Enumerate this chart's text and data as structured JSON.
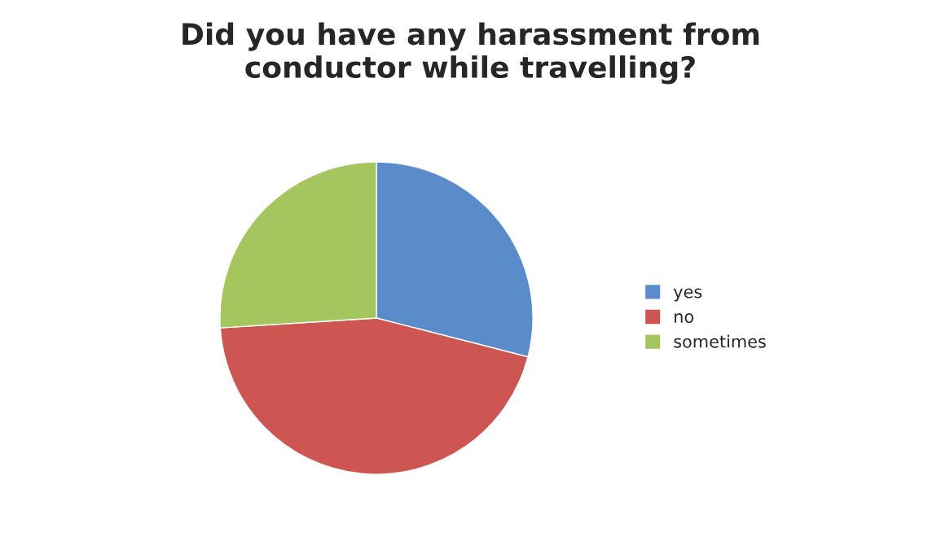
{
  "chart_data": {
    "type": "pie",
    "title": "Did you have any harassment from\nconductor while travelling?",
    "categories": [
      "yes",
      "no",
      "sometimes"
    ],
    "values": [
      29,
      45,
      26
    ],
    "colors": [
      "#5a8ccb",
      "#cd5652",
      "#a5c65f"
    ],
    "legend": "right"
  }
}
